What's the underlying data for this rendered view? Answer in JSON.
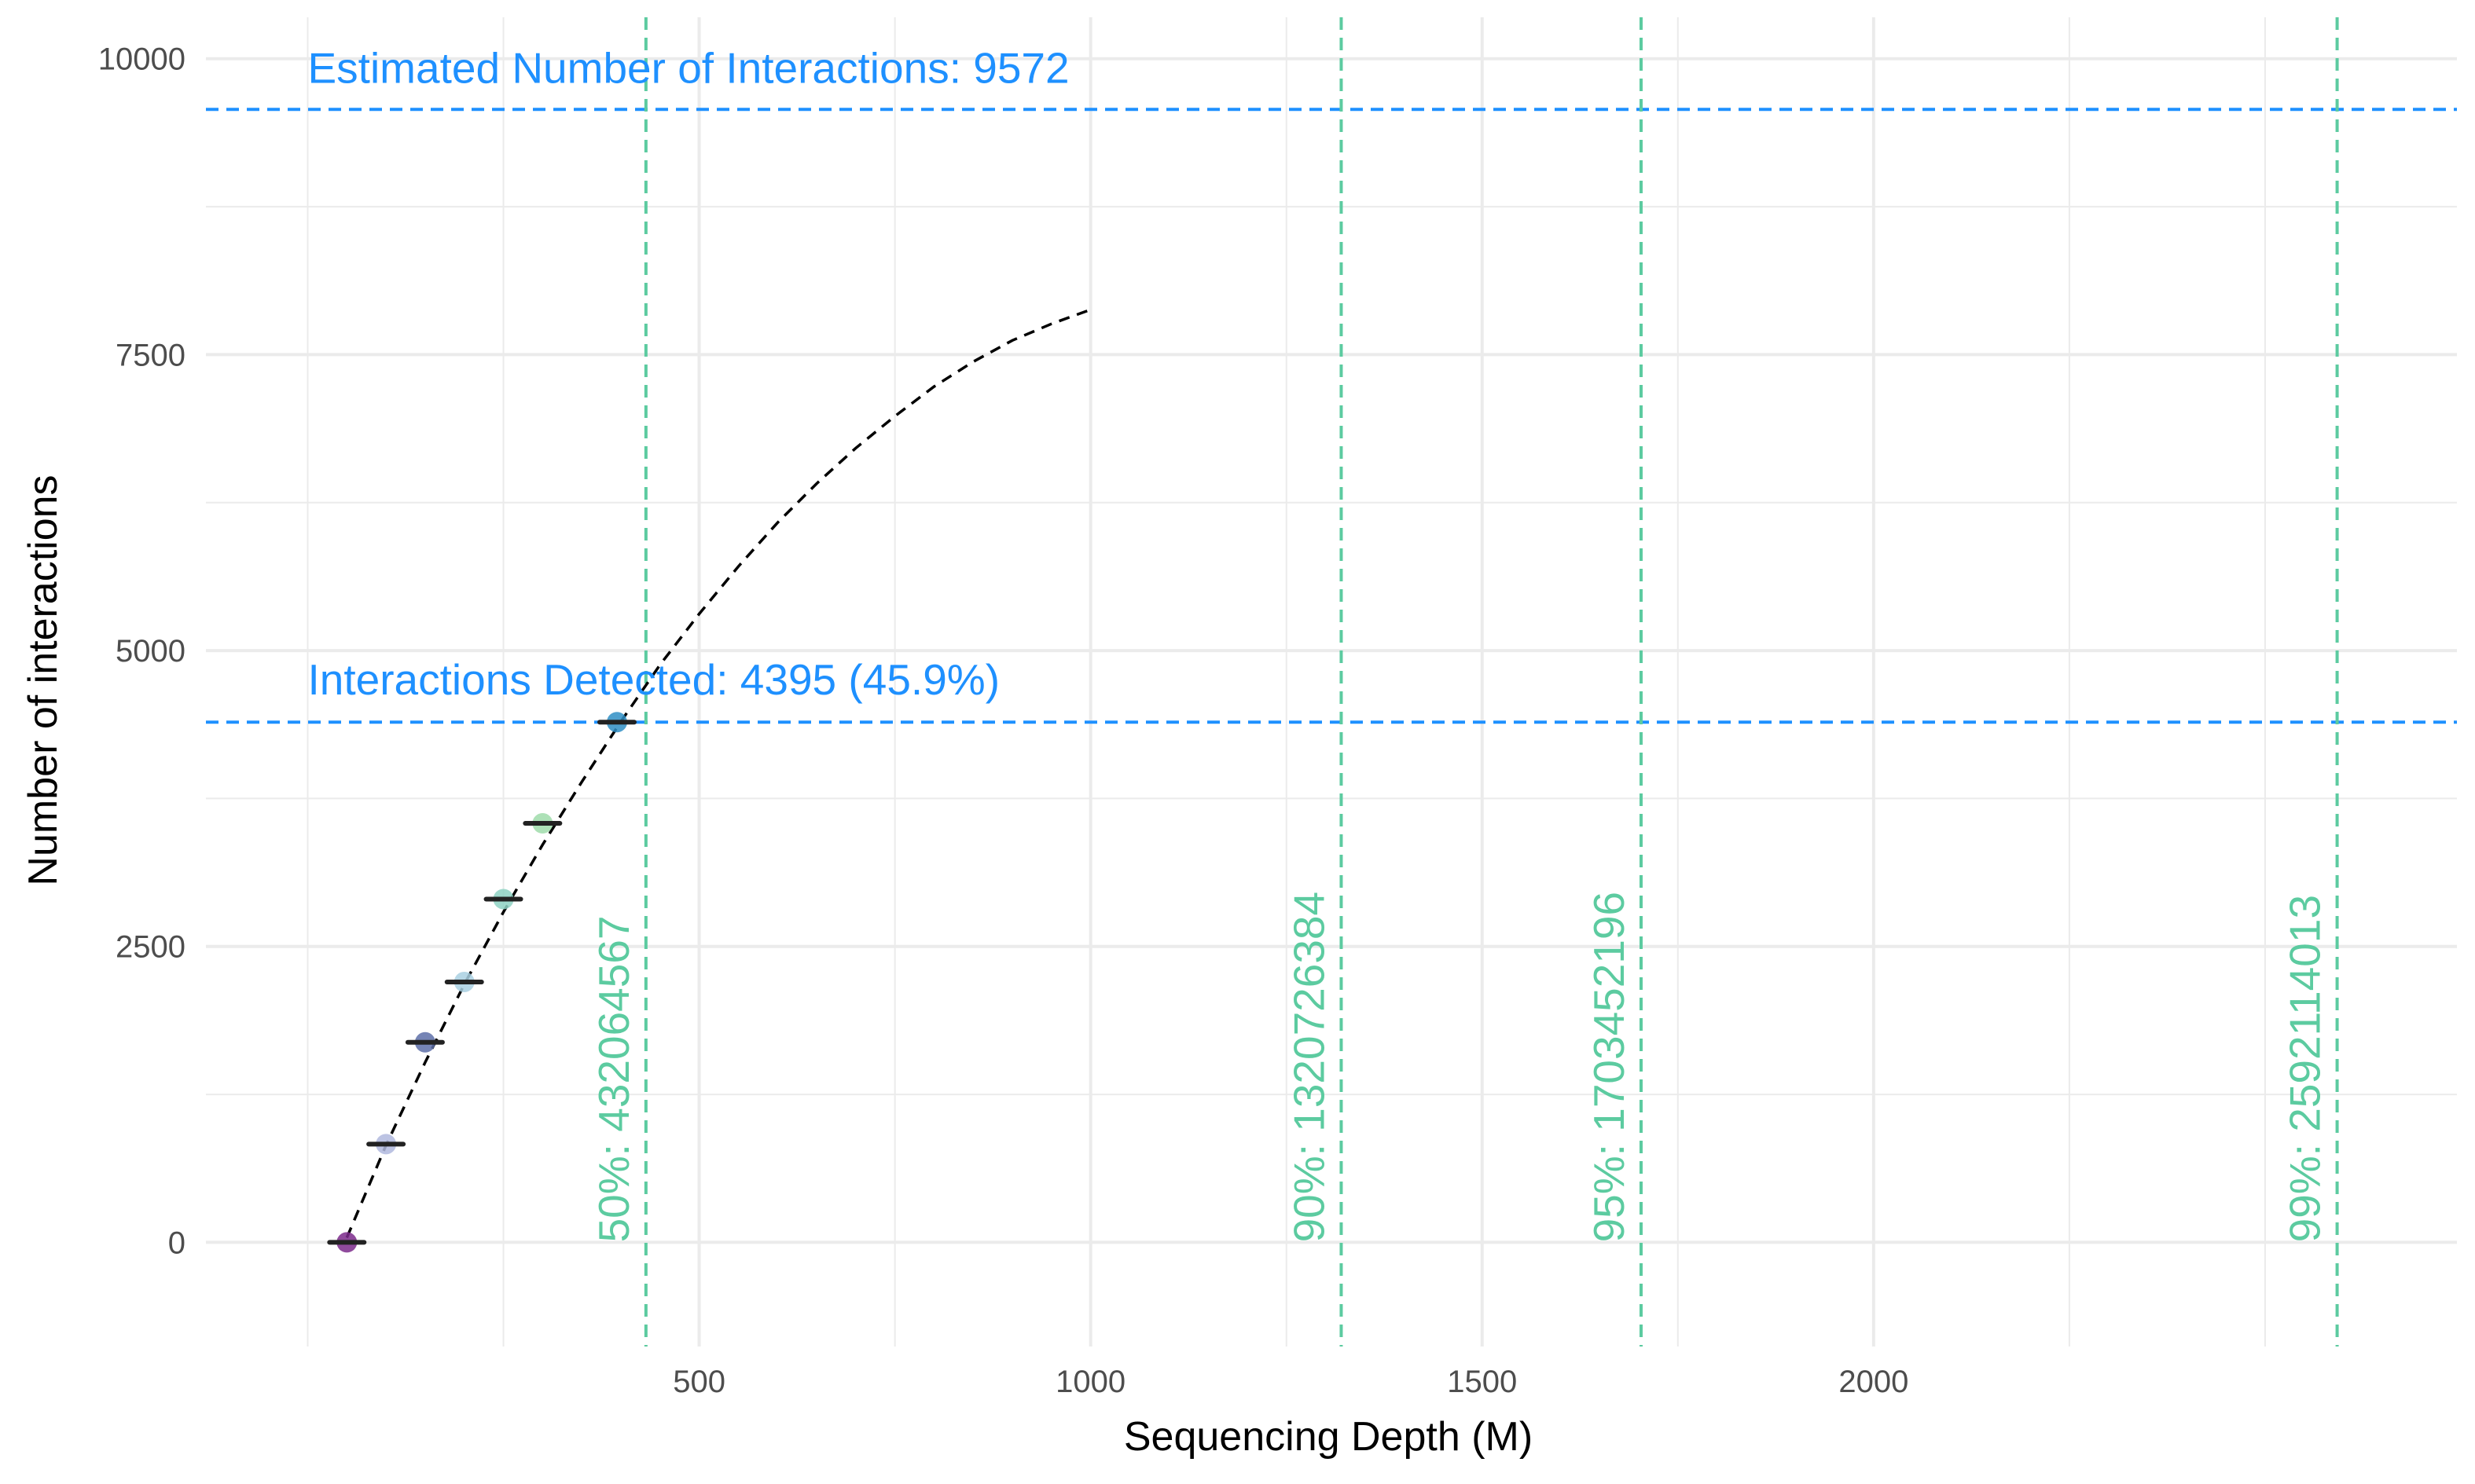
{
  "chart_data": {
    "type": "scatter",
    "title": "",
    "xlabel": "Sequencing Depth (M)",
    "ylabel": "Number of interactions",
    "xlim": [
      -130,
      2745
    ],
    "ylim": [
      -880,
      10350
    ],
    "x_ticks": [
      500,
      1000,
      1500,
      2000
    ],
    "y_ticks": [
      0,
      2500,
      5000,
      7500,
      10000
    ],
    "x_tick_labels": [
      "500",
      "1000",
      "1500",
      "2000"
    ],
    "y_tick_labels": [
      "0",
      "2500",
      "5000",
      "7500",
      "10000"
    ],
    "grid": true,
    "colors": {
      "detected_line": "#1e90ff",
      "saturation_lines": "#5ccba0",
      "curve": "#000000",
      "grid": "#ebebeb",
      "point_outline": "#222222"
    },
    "points": [
      {
        "x": 50,
        "y": 0,
        "color": "#7b2a8b"
      },
      {
        "x": 100,
        "y": 830,
        "color": "#b0b8de"
      },
      {
        "x": 150,
        "y": 1690,
        "color": "#5d6fa8"
      },
      {
        "x": 200,
        "y": 2200,
        "color": "#a9d0e2"
      },
      {
        "x": 250,
        "y": 2900,
        "color": "#8ed2c3"
      },
      {
        "x": 300,
        "y": 3540,
        "color": "#9fdcaa"
      },
      {
        "x": 395,
        "y": 4395,
        "color": "#2f8ec4"
      }
    ],
    "fit_curve": {
      "x": [
        50,
        100,
        150,
        200,
        250,
        300,
        350,
        400,
        450,
        500,
        550,
        600,
        650,
        700,
        750,
        800,
        850,
        900,
        950,
        1000
      ],
      "y": [
        40,
        820,
        1520,
        2180,
        2790,
        3360,
        3890,
        4400,
        4880,
        5310,
        5710,
        6080,
        6410,
        6710,
        6980,
        7230,
        7440,
        7620,
        7760,
        7880
      ]
    },
    "hlines": [
      {
        "y": 9572,
        "label": "Estimated Number of Interactions: 9572",
        "label_x": 0,
        "label_y": 9930
      },
      {
        "y": 4395,
        "label": "Interactions Detected: 4395 (45.9%)",
        "label_x": 0,
        "label_y": 4760
      }
    ],
    "vlines": [
      {
        "x": 432,
        "label": "50%: 432064567"
      },
      {
        "x": 1320,
        "label": "90%: 1320726384"
      },
      {
        "x": 1703,
        "label": "95%: 1703452196"
      },
      {
        "x": 2592,
        "label": "99%: 2592114013"
      }
    ]
  }
}
